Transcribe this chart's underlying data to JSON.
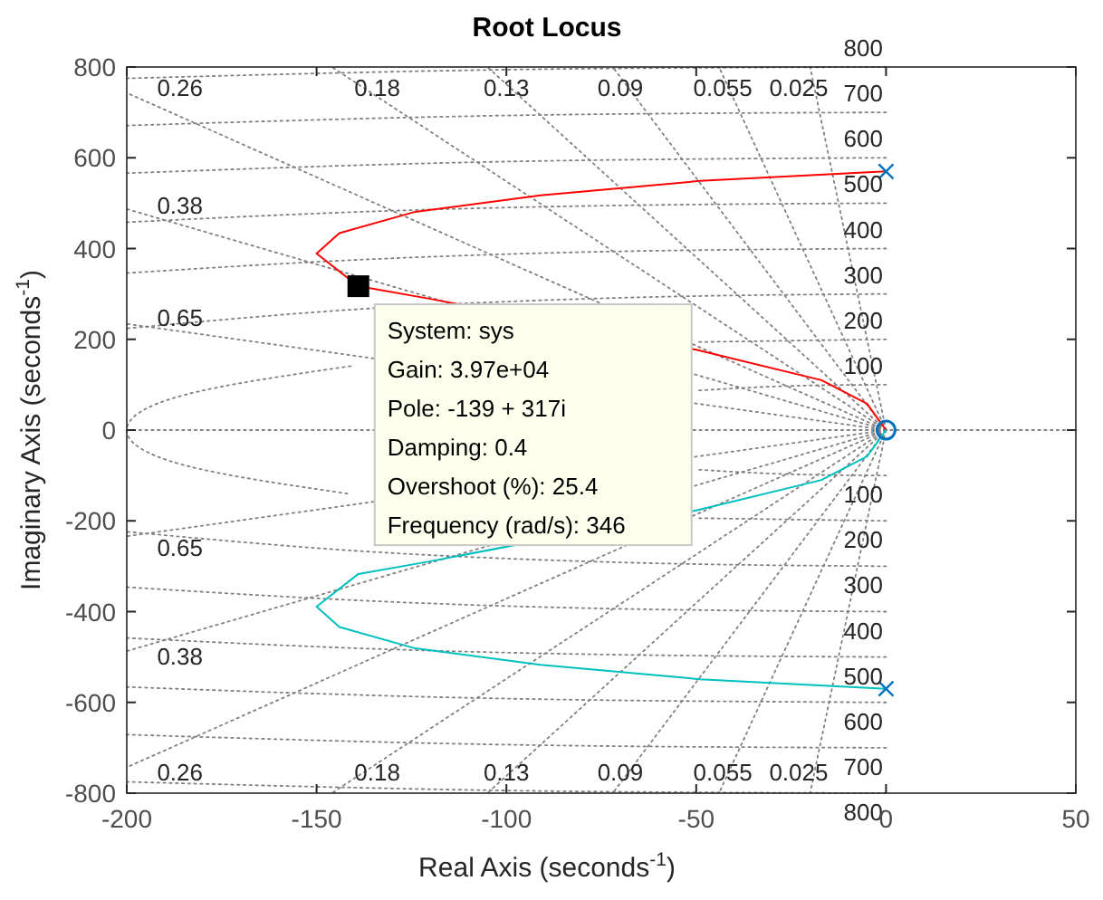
{
  "chart_data": {
    "type": "line",
    "title": "Root Locus",
    "xlabel": "Real Axis (seconds$^{-1}$)",
    "ylabel": "Imaginary Axis (seconds$^{-1}$)",
    "xlim": [
      -200,
      50
    ],
    "xticks": [
      -200,
      -150,
      -100,
      -50,
      0,
      50
    ],
    "ylim": [
      -800,
      800
    ],
    "yticks": [
      -800,
      -600,
      -400,
      -200,
      0,
      200,
      400,
      600,
      800
    ],
    "series": [
      {
        "color": "#808080",
        "line_style": "dotted",
        "x": [
          -200,
          50
        ],
        "values": [
          0,
          0
        ]
      },
      {
        "color": "#808080",
        "line_style": "dotted",
        "x": [
          0,
          -200
        ],
        "values": [
          0,
          234
        ]
      },
      {
        "color": "#808080",
        "line_style": "dotted",
        "x": [
          0,
          -200
        ],
        "values": [
          0,
          487
        ]
      },
      {
        "color": "#808080",
        "line_style": "dotted",
        "x": [
          0,
          -200
        ],
        "values": [
          0,
          743
        ]
      },
      {
        "color": "#808080",
        "line_style": "dotted",
        "x": [
          0,
          -146
        ],
        "values": [
          0,
          800
        ]
      },
      {
        "color": "#808080",
        "line_style": "dotted",
        "x": [
          0,
          -105
        ],
        "values": [
          0,
          800
        ]
      },
      {
        "color": "#808080",
        "line_style": "dotted",
        "x": [
          0,
          -72
        ],
        "values": [
          0,
          800
        ]
      },
      {
        "color": "#808080",
        "line_style": "dotted",
        "x": [
          0,
          -44
        ],
        "values": [
          0,
          800
        ]
      },
      {
        "color": "#808080",
        "line_style": "dotted",
        "x": [
          0,
          -20
        ],
        "values": [
          0,
          800
        ]
      },
      {
        "color": "#808080",
        "line_style": "dotted",
        "x": [
          0,
          -200
        ],
        "values": [
          0,
          -234
        ]
      },
      {
        "color": "#808080",
        "line_style": "dotted",
        "x": [
          0,
          -200
        ],
        "values": [
          0,
          -487
        ]
      },
      {
        "color": "#808080",
        "line_style": "dotted",
        "x": [
          0,
          -200
        ],
        "values": [
          0,
          -743
        ]
      },
      {
        "color": "#808080",
        "line_style": "dotted",
        "x": [
          0,
          -146
        ],
        "values": [
          0,
          -800
        ]
      },
      {
        "color": "#808080",
        "line_style": "dotted",
        "x": [
          0,
          -105
        ],
        "values": [
          0,
          -800
        ]
      },
      {
        "color": "#808080",
        "line_style": "dotted",
        "x": [
          0,
          -72
        ],
        "values": [
          0,
          -800
        ]
      },
      {
        "color": "#808080",
        "line_style": "dotted",
        "x": [
          0,
          -44
        ],
        "values": [
          0,
          -800
        ]
      },
      {
        "color": "#808080",
        "line_style": "dotted",
        "x": [
          0,
          -20
        ],
        "values": [
          0,
          -800
        ]
      },
      {
        "color": "#808080",
        "line_style": "dotted",
        "x": [
          0,
          -26,
          -50
        ],
        "values": [
          100,
          97,
          87
        ]
      },
      {
        "color": "#808080",
        "line_style": "dotted",
        "x": [
          0,
          -26,
          -50
        ],
        "values": [
          -100,
          -97,
          -87
        ]
      },
      {
        "color": "#808080",
        "line_style": "dotted",
        "x": [
          0,
          -50
        ],
        "values": [
          200,
          194
        ]
      },
      {
        "color": "#808080",
        "line_style": "dotted",
        "x": [
          -141,
          -185,
          -200,
          -185,
          -141
        ],
        "values": [
          141,
          77,
          0,
          -77,
          -141
        ]
      },
      {
        "color": "#808080",
        "line_style": "dotted",
        "x": [
          0,
          -50
        ],
        "values": [
          -200,
          -194
        ]
      },
      {
        "color": "#808080",
        "line_style": "dotted",
        "x": [
          0,
          -52,
          -103,
          -150,
          -200
        ],
        "values": [
          300,
          295,
          282,
          260,
          224
        ]
      },
      {
        "color": "#808080",
        "line_style": "dotted",
        "x": [
          0,
          -52,
          -103,
          -150,
          -200
        ],
        "values": [
          -300,
          -295,
          -282,
          -260,
          -224
        ]
      },
      {
        "color": "#808080",
        "line_style": "dotted",
        "x": [
          0,
          -69,
          -137,
          -200
        ],
        "values": [
          400,
          394,
          376,
          346
        ]
      },
      {
        "color": "#808080",
        "line_style": "dotted",
        "x": [
          0,
          -69,
          -137,
          -200
        ],
        "values": [
          -400,
          -394,
          -376,
          -346
        ]
      },
      {
        "color": "#808080",
        "line_style": "dotted",
        "x": [
          0,
          -70,
          -138,
          -200
        ],
        "values": [
          500,
          495,
          481,
          458
        ]
      },
      {
        "color": "#808080",
        "line_style": "dotted",
        "x": [
          0,
          -70,
          -138,
          -200
        ],
        "values": [
          -500,
          -495,
          -481,
          -458
        ]
      },
      {
        "color": "#808080",
        "line_style": "dotted",
        "x": [
          0,
          -104,
          -200
        ],
        "values": [
          600,
          591,
          566
        ]
      },
      {
        "color": "#808080",
        "line_style": "dotted",
        "x": [
          0,
          -104,
          -200
        ],
        "values": [
          -600,
          -591,
          -566
        ]
      },
      {
        "color": "#808080",
        "line_style": "dotted",
        "x": [
          0,
          -101,
          -200
        ],
        "values": [
          700,
          693,
          671
        ]
      },
      {
        "color": "#808080",
        "line_style": "dotted",
        "x": [
          0,
          -101,
          -200
        ],
        "values": [
          -700,
          -693,
          -671
        ]
      },
      {
        "color": "#808080",
        "line_style": "dotted",
        "x": [
          0,
          -101,
          -200
        ],
        "values": [
          800,
          794,
          775
        ]
      },
      {
        "color": "#808080",
        "line_style": "dotted",
        "x": [
          0,
          -101,
          -200
        ],
        "values": [
          -800,
          -794,
          -775
        ]
      },
      {
        "color": "#ff0000",
        "line_style": "solid",
        "x": [
          0,
          -49,
          -91,
          -124,
          -144,
          -150,
          -139,
          -120,
          -50,
          -17,
          -5,
          0
        ],
        "values": [
          570,
          549,
          517,
          481,
          434,
          389,
          317,
          289,
          177,
          110,
          58,
          0
        ]
      },
      {
        "color": "#00bfbf",
        "line_style": "solid",
        "x": [
          0,
          -49,
          -91,
          -124,
          -144,
          -150,
          -139,
          -120,
          -50,
          -17,
          -5,
          0
        ],
        "values": [
          -570,
          -549,
          -517,
          -481,
          -434,
          -389,
          -317,
          -289,
          -177,
          -110,
          -58,
          0
        ]
      },
      {
        "type": "scatter",
        "marker": "cross",
        "color": "#0072bd",
        "x": [
          0,
          0
        ],
        "values": [
          570,
          -570
        ]
      },
      {
        "type": "scatter",
        "marker": "circle",
        "color": "#0072bd",
        "x": [
          0
        ],
        "values": [
          0
        ]
      },
      {
        "type": "scatter",
        "marker": "square",
        "color": "#000000",
        "x": [
          -139
        ],
        "values": [
          317
        ]
      }
    ],
    "annotations": [
      {
        "text": "System: sys\nGain: 3.97e+04\nPole: -139 + 317i\nDamping: 0.4\nOvershoot (%): 25.4\nFrequency (rad/s): 346",
        "x": -139,
        "y": 317
      },
      {
        "text": "0.26",
        "x": -186,
        "y": 712
      },
      {
        "text": "0.18",
        "x": -134,
        "y": 712
      },
      {
        "text": "0.13",
        "x": -100,
        "y": 712
      },
      {
        "text": "0.09",
        "x": -70,
        "y": 712
      },
      {
        "text": "0.055",
        "x": -43,
        "y": 712
      },
      {
        "text": "0.025",
        "x": -23,
        "y": 712
      },
      {
        "text": "0.38",
        "x": -186,
        "y": 453
      },
      {
        "text": "0.65",
        "x": -186,
        "y": 205
      },
      {
        "text": "0.65",
        "x": -186,
        "y": -217
      },
      {
        "text": "0.38",
        "x": -186,
        "y": -457
      },
      {
        "text": "0.26",
        "x": -186,
        "y": -712
      },
      {
        "text": "0.18",
        "x": -134,
        "y": -712
      },
      {
        "text": "0.13",
        "x": -100,
        "y": -712
      },
      {
        "text": "0.09",
        "x": -70,
        "y": -712
      },
      {
        "text": "0.055",
        "x": -43,
        "y": -712
      },
      {
        "text": "0.025",
        "x": -23,
        "y": -712
      },
      {
        "text": "100",
        "x": -6,
        "y": 100
      },
      {
        "text": "200",
        "x": -6,
        "y": 200
      },
      {
        "text": "300",
        "x": -6,
        "y": 300
      },
      {
        "text": "400",
        "x": -6,
        "y": 400
      },
      {
        "text": "500",
        "x": -6,
        "y": 500
      },
      {
        "text": "600",
        "x": -6,
        "y": 600
      },
      {
        "text": "700",
        "x": -6,
        "y": 700
      },
      {
        "text": "800",
        "x": -6,
        "y": 800
      },
      {
        "text": "100",
        "x": -6,
        "y": -100
      },
      {
        "text": "200",
        "x": -6,
        "y": -200
      },
      {
        "text": "300",
        "x": -6,
        "y": -300
      },
      {
        "text": "400",
        "x": -6,
        "y": -400
      },
      {
        "text": "500",
        "x": -6,
        "y": -500
      },
      {
        "text": "600",
        "x": -6,
        "y": -600
      },
      {
        "text": "700",
        "x": -6,
        "y": -700
      },
      {
        "text": "800",
        "x": -6,
        "y": -800
      }
    ]
  }
}
